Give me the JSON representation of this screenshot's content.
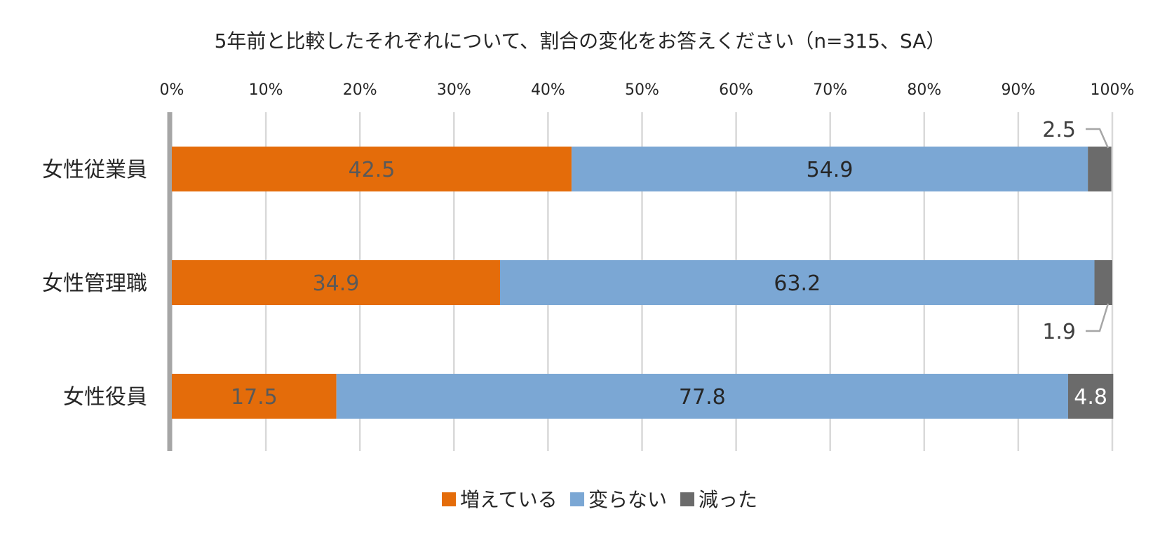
{
  "chart_data": {
    "type": "bar",
    "orientation": "horizontal",
    "stacked": true,
    "title": "5年前と比較したそれぞれについて、割合の変化をお答えください（n=315、SA）",
    "xlabel": "",
    "ylabel": "",
    "xlim": [
      0,
      100
    ],
    "x_ticks": [
      "0%",
      "10%",
      "20%",
      "30%",
      "40%",
      "50%",
      "60%",
      "70%",
      "80%",
      "90%",
      "100%"
    ],
    "grid": true,
    "legend_position": "bottom",
    "categories": [
      "女性従業員",
      "女性管理職",
      "女性役員"
    ],
    "series": [
      {
        "name": "増えている",
        "color": "#E46C0A",
        "values": [
          42.5,
          34.9,
          17.5
        ],
        "labels": [
          "42.5",
          "34.9",
          "17.5"
        ]
      },
      {
        "name": "変らない",
        "color": "#7BA7D4",
        "values": [
          54.9,
          63.2,
          77.8
        ],
        "labels": [
          "54.9",
          "63.2",
          "77.8"
        ]
      },
      {
        "name": "減った",
        "color": "#6B6B6B",
        "values": [
          2.5,
          1.9,
          4.8
        ],
        "labels": [
          "2.5",
          "1.9",
          "4.8"
        ]
      }
    ]
  }
}
